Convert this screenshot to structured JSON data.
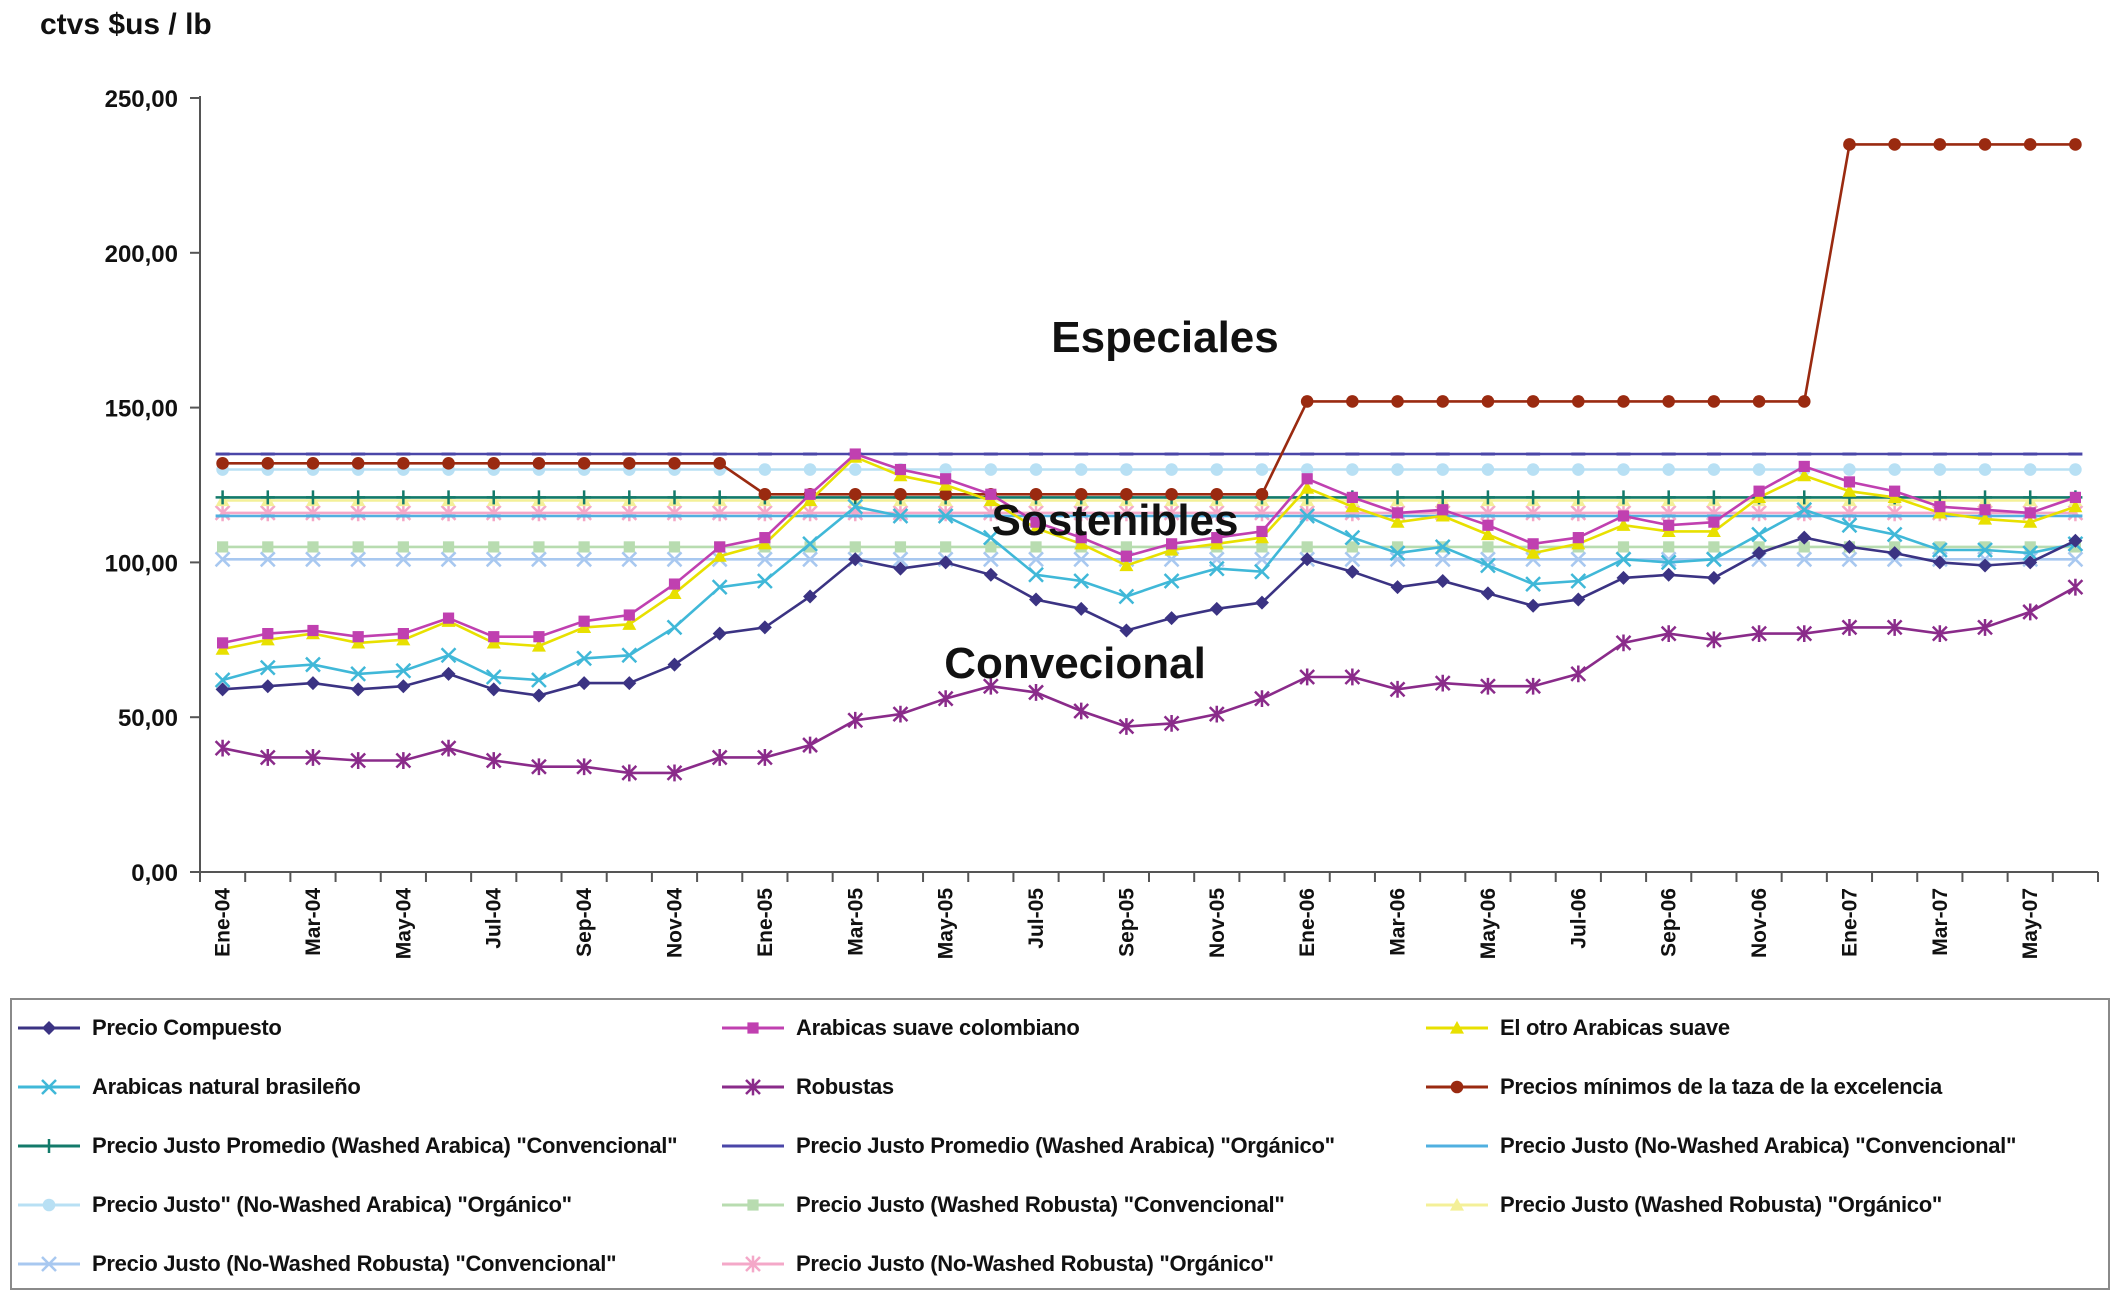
{
  "chart_data": {
    "type": "line",
    "ylabel": "ctvs $us / lb",
    "ylim": [
      0,
      250
    ],
    "yticks": [
      "0,00",
      "50,00",
      "100,00",
      "150,00",
      "200,00",
      "250,00"
    ],
    "x": [
      "Ene-04",
      "Feb-04",
      "Mar-04",
      "Abr-04",
      "May-04",
      "Jun-04",
      "Jul-04",
      "Ago-04",
      "Sep-04",
      "Oct-04",
      "Nov-04",
      "Dic-04",
      "Ene-05",
      "Feb-05",
      "Mar-05",
      "Abr-05",
      "May-05",
      "Jun-05",
      "Jul-05",
      "Ago-05",
      "Sep-05",
      "Oct-05",
      "Nov-05",
      "Dic-05",
      "Ene-06",
      "Feb-06",
      "Mar-06",
      "Abr-06",
      "May-06",
      "Jun-06",
      "Jul-06",
      "Ago-06",
      "Sep-06",
      "Oct-06",
      "Nov-06",
      "Dic-06",
      "Ene-07",
      "Feb-07",
      "Mar-07",
      "Abr-07",
      "May-07",
      "Jun-07"
    ],
    "xtick_labels": [
      "Ene-04",
      "Mar-04",
      "May-04",
      "Jul-04",
      "Sep-04",
      "Nov-04",
      "Ene-05",
      "Mar-05",
      "May-05",
      "Jul-05",
      "Sep-05",
      "Nov-05",
      "Ene-06",
      "Mar-06",
      "May-06",
      "Jul-06",
      "Sep-06",
      "Nov-06",
      "Ene-07",
      "Mar-07",
      "May-07"
    ],
    "annotations": [
      "Especiales",
      "Sostenibles",
      "Convecional"
    ],
    "grid": false,
    "legend_position": "bottom",
    "series": [
      {
        "name": "Precio Compuesto",
        "color": "#3b3383",
        "marker": "diamond",
        "values": [
          59,
          60,
          61,
          59,
          60,
          64,
          59,
          57,
          61,
          61,
          67,
          77,
          79,
          89,
          101,
          98,
          100,
          96,
          88,
          85,
          78,
          82,
          85,
          87,
          101,
          97,
          92,
          94,
          90,
          86,
          88,
          95,
          96,
          95,
          103,
          108,
          105,
          103,
          100,
          99,
          100,
          107
        ]
      },
      {
        "name": "Arabicas suave colombiano",
        "color": "#c040b0",
        "marker": "square",
        "values": [
          74,
          77,
          78,
          76,
          77,
          82,
          76,
          76,
          81,
          83,
          93,
          105,
          108,
          122,
          135,
          130,
          127,
          122,
          113,
          108,
          102,
          106,
          108,
          110,
          127,
          121,
          116,
          117,
          112,
          106,
          108,
          115,
          112,
          113,
          123,
          131,
          126,
          123,
          118,
          117,
          116,
          121
        ]
      },
      {
        "name": "El otro Arabicas suave",
        "color": "#e8e000",
        "marker": "triangle",
        "values": [
          72,
          75,
          77,
          74,
          75,
          81,
          74,
          73,
          79,
          80,
          90,
          102,
          106,
          120,
          134,
          128,
          125,
          120,
          111,
          106,
          99,
          104,
          106,
          108,
          124,
          118,
          113,
          115,
          109,
          103,
          106,
          112,
          110,
          110,
          121,
          128,
          123,
          121,
          116,
          114,
          113,
          118
        ]
      },
      {
        "name": "Arabicas natural brasileño",
        "color": "#40b8d8",
        "marker": "x",
        "values": [
          62,
          66,
          67,
          64,
          65,
          70,
          63,
          62,
          69,
          70,
          79,
          92,
          94,
          106,
          118,
          115,
          115,
          108,
          96,
          94,
          89,
          94,
          98,
          97,
          115,
          108,
          103,
          105,
          99,
          93,
          94,
          101,
          100,
          101,
          109,
          117,
          112,
          109,
          104,
          104,
          103,
          106
        ]
      },
      {
        "name": "Robustas",
        "color": "#8a2b8a",
        "marker": "star",
        "values": [
          40,
          37,
          37,
          36,
          36,
          40,
          36,
          34,
          34,
          32,
          32,
          37,
          37,
          41,
          49,
          51,
          56,
          60,
          58,
          52,
          47,
          48,
          51,
          56,
          63,
          63,
          59,
          61,
          60,
          60,
          64,
          74,
          77,
          75,
          77,
          77,
          79,
          79,
          77,
          79,
          84,
          92
        ]
      },
      {
        "name": "Precios mínimos de la taza de la excelencia",
        "color": "#9a2a10",
        "marker": "circle",
        "values": [
          132,
          132,
          132,
          132,
          132,
          132,
          132,
          132,
          132,
          132,
          132,
          132,
          122,
          122,
          122,
          122,
          122,
          122,
          122,
          122,
          122,
          122,
          122,
          122,
          152,
          152,
          152,
          152,
          152,
          152,
          152,
          152,
          152,
          152,
          152,
          152,
          235,
          235,
          235,
          235,
          235,
          235
        ]
      },
      {
        "name": "Precio Justo Promedio (Washed Arabica) \"Convencional\"",
        "color": "#137a6a",
        "marker": "plus",
        "values": [
          121,
          121,
          121,
          121,
          121,
          121,
          121,
          121,
          121,
          121,
          121,
          121,
          121,
          121,
          121,
          121,
          121,
          121,
          121,
          121,
          121,
          121,
          121,
          121,
          121,
          121,
          121,
          121,
          121,
          121,
          121,
          121,
          121,
          121,
          121,
          121,
          121,
          121,
          121,
          121,
          121,
          121
        ]
      },
      {
        "name": "Precio Justo Promedio (Washed Arabica) \"Orgánico\"",
        "color": "#4a46a8",
        "marker": "dash",
        "values": [
          135,
          135,
          135,
          135,
          135,
          135,
          135,
          135,
          135,
          135,
          135,
          135,
          135,
          135,
          135,
          135,
          135,
          135,
          135,
          135,
          135,
          135,
          135,
          135,
          135,
          135,
          135,
          135,
          135,
          135,
          135,
          135,
          135,
          135,
          135,
          135,
          135,
          135,
          135,
          135,
          135,
          135
        ]
      },
      {
        "name": "Precio Justo (No-Washed Arabica) \"Convencional\"",
        "color": "#50b0e0",
        "marker": "dash",
        "values": [
          115,
          115,
          115,
          115,
          115,
          115,
          115,
          115,
          115,
          115,
          115,
          115,
          115,
          115,
          115,
          115,
          115,
          115,
          115,
          115,
          115,
          115,
          115,
          115,
          115,
          115,
          115,
          115,
          115,
          115,
          115,
          115,
          115,
          115,
          115,
          115,
          115,
          115,
          115,
          115,
          115,
          115
        ]
      },
      {
        "name": "Precio Justo\" (No-Washed Arabica) \"Orgánico\"",
        "color": "#b8e0f4",
        "marker": "circle",
        "values": [
          130,
          130,
          130,
          130,
          130,
          130,
          130,
          130,
          130,
          130,
          130,
          130,
          130,
          130,
          130,
          130,
          130,
          130,
          130,
          130,
          130,
          130,
          130,
          130,
          130,
          130,
          130,
          130,
          130,
          130,
          130,
          130,
          130,
          130,
          130,
          130,
          130,
          130,
          130,
          130,
          130,
          130
        ]
      },
      {
        "name": "Precio Justo (Washed Robusta) \"Convencional\"",
        "color": "#b8dcb0",
        "marker": "square",
        "values": [
          105,
          105,
          105,
          105,
          105,
          105,
          105,
          105,
          105,
          105,
          105,
          105,
          105,
          105,
          105,
          105,
          105,
          105,
          105,
          105,
          105,
          105,
          105,
          105,
          105,
          105,
          105,
          105,
          105,
          105,
          105,
          105,
          105,
          105,
          105,
          105,
          105,
          105,
          105,
          105,
          105,
          105
        ]
      },
      {
        "name": "Precio Justo (Washed Robusta) \"Orgánico\"",
        "color": "#f4f098",
        "marker": "triangle",
        "values": [
          120,
          120,
          120,
          120,
          120,
          120,
          120,
          120,
          120,
          120,
          120,
          120,
          120,
          120,
          120,
          120,
          120,
          120,
          120,
          120,
          120,
          120,
          120,
          120,
          120,
          120,
          120,
          120,
          120,
          120,
          120,
          120,
          120,
          120,
          120,
          120,
          120,
          120,
          120,
          120,
          120,
          120
        ]
      },
      {
        "name": "Precio Justo (No-Washed Robusta) \"Convencional\"",
        "color": "#a8c8f0",
        "marker": "x",
        "values": [
          101,
          101,
          101,
          101,
          101,
          101,
          101,
          101,
          101,
          101,
          101,
          101,
          101,
          101,
          101,
          101,
          101,
          101,
          101,
          101,
          101,
          101,
          101,
          101,
          101,
          101,
          101,
          101,
          101,
          101,
          101,
          101,
          101,
          101,
          101,
          101,
          101,
          101,
          101,
          101,
          101,
          101
        ]
      },
      {
        "name": "Precio Justo (No-Washed Robusta) \"Orgánico\"",
        "color": "#f4a8c8",
        "marker": "star",
        "values": [
          116,
          116,
          116,
          116,
          116,
          116,
          116,
          116,
          116,
          116,
          116,
          116,
          116,
          116,
          116,
          116,
          116,
          116,
          116,
          116,
          116,
          116,
          116,
          116,
          116,
          116,
          116,
          116,
          116,
          116,
          116,
          116,
          116,
          116,
          116,
          116,
          116,
          116,
          116,
          116,
          116,
          116
        ]
      }
    ]
  }
}
